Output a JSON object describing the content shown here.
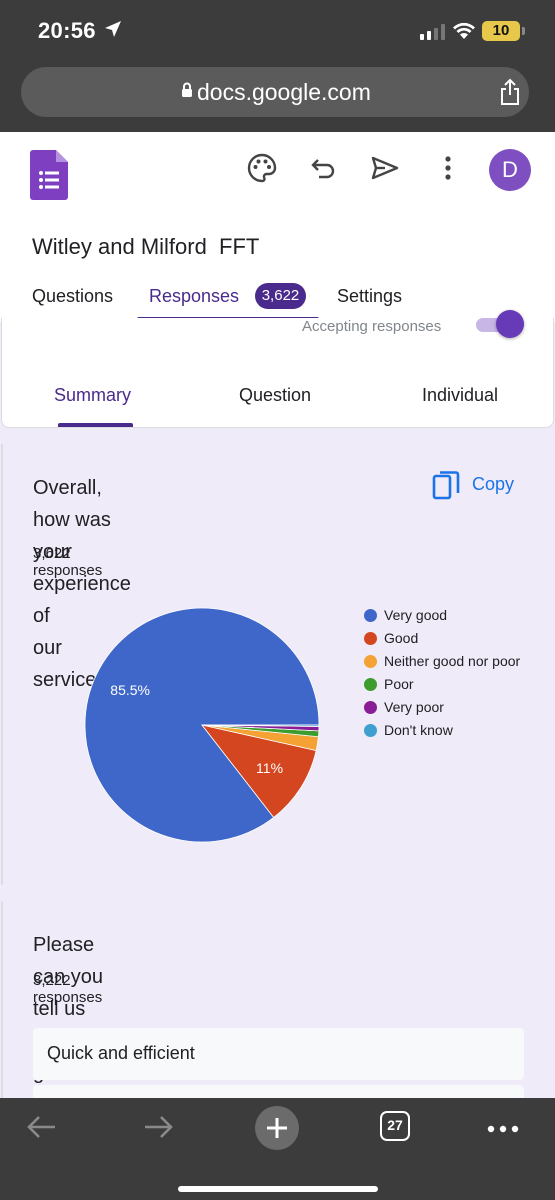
{
  "status_bar": {
    "time": "20:56",
    "battery": "10"
  },
  "browser": {
    "url": "docs.google.com"
  },
  "form": {
    "title": "Witley and Milford  FFT",
    "avatar_letter": "D",
    "tabs": [
      {
        "label": "Questions"
      },
      {
        "label": "Responses",
        "badge": "3,622"
      },
      {
        "label": "Settings"
      }
    ],
    "accepting_label": "Accepting responses",
    "subtabs": [
      "Summary",
      "Question",
      "Individual"
    ]
  },
  "question1": {
    "title_line1": "Overall, how was your experience of",
    "title_line2": "our service?",
    "responses": "3,622 responses",
    "copy_label": "Copy",
    "pie_labels": {
      "very_good": "85.5%",
      "good": "11%"
    }
  },
  "chart_data": {
    "type": "pie",
    "categories": [
      "Very good",
      "Good",
      "Neither good nor poor",
      "Poor",
      "Very poor",
      "Don't know"
    ],
    "values": [
      85.5,
      11,
      1.9,
      0.8,
      0.6,
      0.2
    ],
    "colors": [
      "#3f67c9",
      "#d3461f",
      "#f3a233",
      "#3c9c2d",
      "#8a1d96",
      "#3e9fd0"
    ],
    "legend_position": "right"
  },
  "question2": {
    "title": "Please can you tell us why you gave your answer?",
    "responses": "3,222 responses",
    "answers": [
      "Quick and efficient"
    ]
  },
  "bottom_bar": {
    "tab_count": "27"
  }
}
